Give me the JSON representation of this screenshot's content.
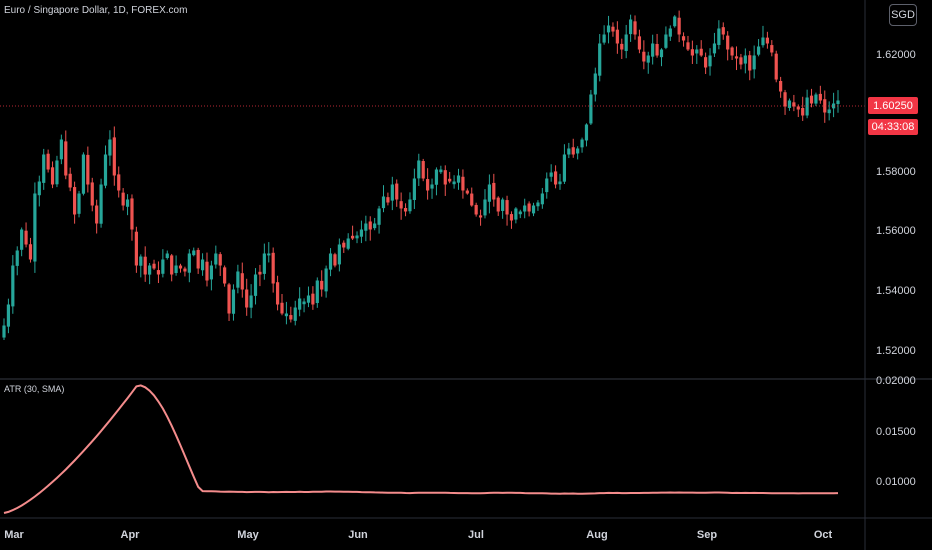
{
  "header": {
    "symbol_title": "Euro / Singapore Dollar, 1D, FOREX.com",
    "currency_button": "SGD"
  },
  "indicator": {
    "title": "ATR (30, SMA)"
  },
  "last_price": {
    "value": "1.60250",
    "countdown": "04:33:08"
  },
  "colors": {
    "up": "#26a69a",
    "down": "#ef5350",
    "atr_line": "#f48c8c",
    "last_price_line": "#f23645",
    "grid_separator": "#363a45"
  },
  "chart_data": {
    "type": "candlestick",
    "price_axis": {
      "ticks": [
        1.52,
        1.54,
        1.56,
        1.58,
        1.6,
        1.62
      ],
      "tick_labels": [
        "1.52000",
        "1.54000",
        "1.56000",
        "1.58000",
        "1.60000",
        "1.62000"
      ],
      "range": [
        1.5125,
        1.6325
      ]
    },
    "atr_axis": {
      "ticks": [
        0.01,
        0.015,
        0.02
      ],
      "tick_labels": [
        "0.01000",
        "0.01500",
        "0.02000"
      ],
      "range": [
        0.0065,
        0.0201
      ]
    },
    "x_ticks": [
      "Mar",
      "Apr",
      "May",
      "Jun",
      "Jul",
      "Aug",
      "Sep",
      "Oct"
    ],
    "closes": [
      1.528,
      1.535,
      1.548,
      1.553,
      1.56,
      1.555,
      1.55,
      1.572,
      1.576,
      1.585,
      1.58,
      1.575,
      1.583,
      1.59,
      1.578,
      1.574,
      1.565,
      1.572,
      1.585,
      1.575,
      1.568,
      1.562,
      1.575,
      1.585,
      1.59,
      1.578,
      1.573,
      1.568,
      1.57,
      1.56,
      1.548,
      1.551,
      1.545,
      1.548,
      1.547,
      1.545,
      1.55,
      1.552,
      1.545,
      1.548,
      1.547,
      1.546,
      1.552,
      1.553,
      1.547,
      1.55,
      1.543,
      1.548,
      1.552,
      1.548,
      1.542,
      1.532,
      1.54,
      1.546,
      1.54,
      1.534,
      1.538,
      1.545,
      1.545,
      1.552,
      1.552,
      1.542,
      1.535,
      1.532,
      1.532,
      1.53,
      1.534,
      1.537,
      1.536,
      1.538,
      1.535,
      1.543,
      1.54,
      1.547,
      1.552,
      1.548,
      1.555,
      1.554,
      1.557,
      1.557,
      1.558,
      1.56,
      1.562,
      1.56,
      1.562,
      1.567,
      1.571,
      1.569,
      1.575,
      1.57,
      1.567,
      1.566,
      1.57,
      1.577,
      1.583,
      1.577,
      1.573,
      1.575,
      1.58,
      1.58,
      1.575,
      1.576,
      1.576,
      1.578,
      1.573,
      1.572,
      1.568,
      1.565,
      1.564,
      1.57,
      1.575,
      1.57,
      1.566,
      1.57,
      1.565,
      1.563,
      1.567,
      1.566,
      1.568,
      1.566,
      1.568,
      1.569,
      1.572,
      1.577,
      1.579,
      1.575,
      1.576,
      1.585,
      1.587,
      1.585,
      1.587,
      1.59,
      1.595,
      1.605,
      1.612,
      1.622,
      1.625,
      1.628,
      1.626,
      1.622,
      1.62,
      1.625,
      1.63,
      1.625,
      1.62,
      1.616,
      1.618,
      1.622,
      1.618,
      1.62,
      1.625,
      1.627,
      1.631,
      1.625,
      1.623,
      1.62,
      1.618,
      1.62,
      1.618,
      1.614,
      1.618,
      1.622,
      1.627,
      1.625,
      1.62,
      1.618,
      1.617,
      1.615,
      1.618,
      1.613,
      1.618,
      1.621,
      1.624,
      1.622,
      1.619,
      1.61,
      1.606,
      1.601,
      1.603,
      1.601,
      1.6,
      1.598,
      1.604,
      1.602,
      1.605,
      1.603,
      1.599,
      1.6,
      1.602,
      1.603
    ]
  }
}
